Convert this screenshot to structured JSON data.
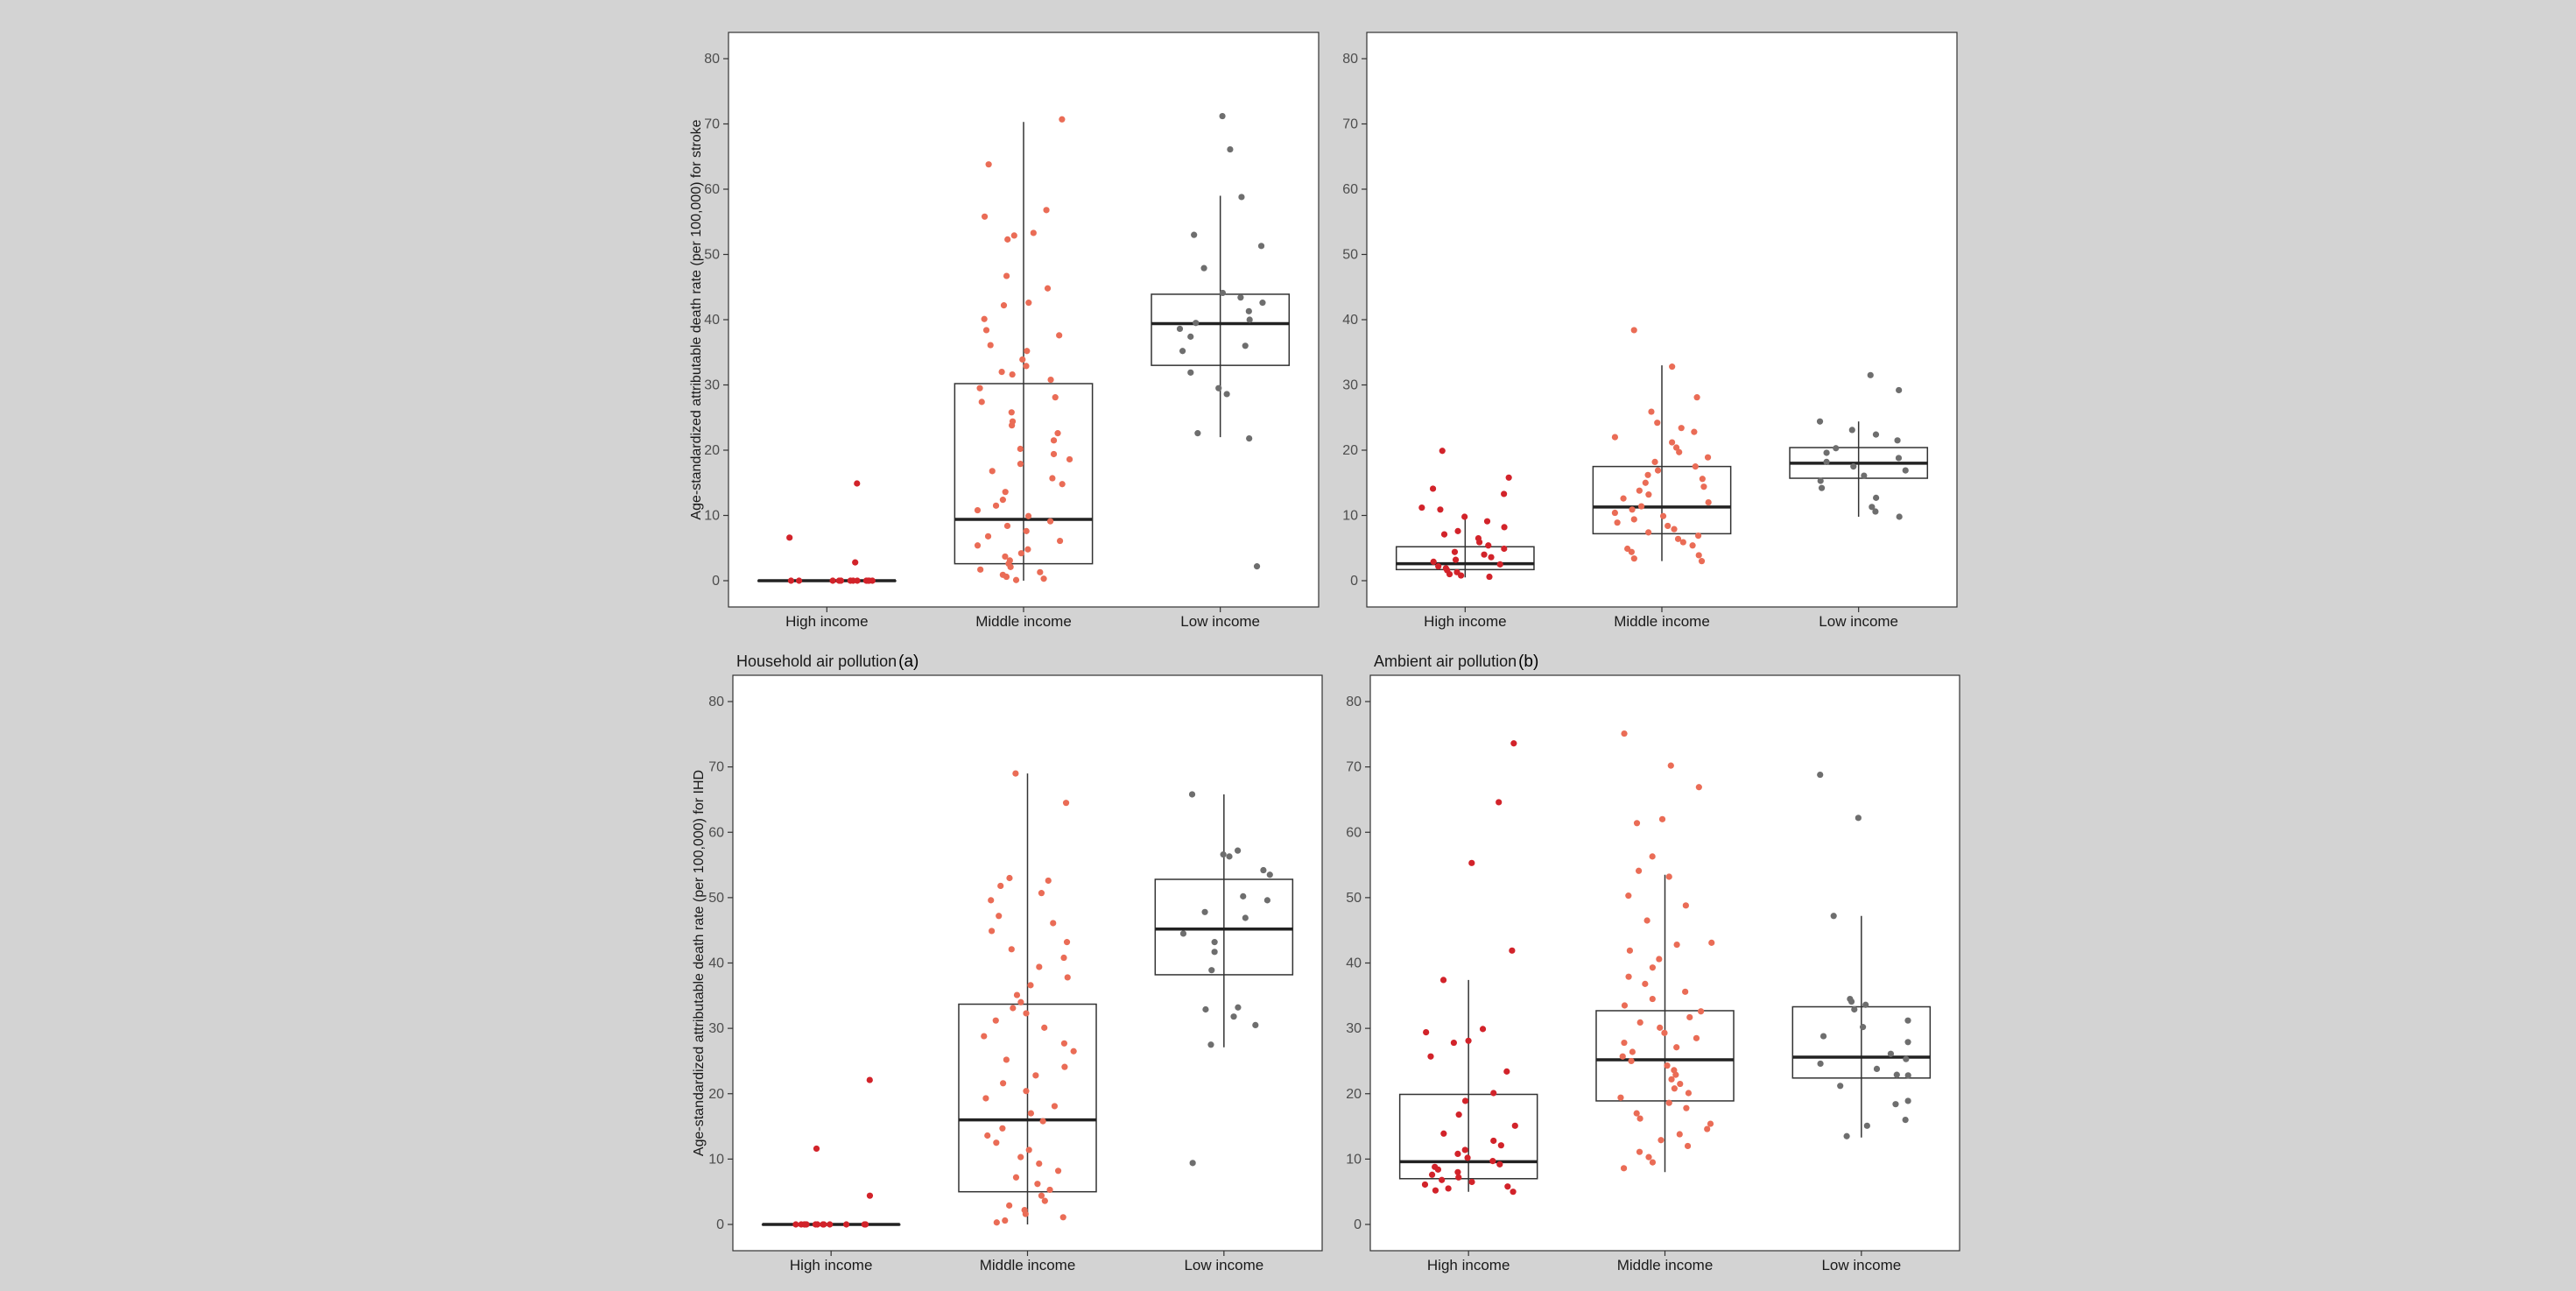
{
  "chart_data": [
    {
      "type": "box",
      "title": "",
      "tag": "",
      "ylabel": "Age-standardized attributable death rate (per 100,000) for stroke",
      "categories": [
        "High income",
        "Middle income",
        "Low income"
      ],
      "ylim": [
        0,
        80
      ],
      "yticks": [
        0,
        10,
        20,
        30,
        40,
        50,
        60,
        70,
        80
      ],
      "grid": false,
      "boxes": [
        {
          "q1": 0,
          "median": 0,
          "q3": 0,
          "whisker_low": 0,
          "whisker_high": 0
        },
        {
          "q1": 2.6,
          "median": 9.4,
          "q3": 30.2,
          "whisker_low": 0,
          "whisker_high": 70.3
        },
        {
          "q1": 33,
          "median": 39.4,
          "q3": 43.9,
          "whisker_low": 22,
          "whisker_high": 59
        }
      ],
      "points": [
        [
          14.9,
          6.6,
          2.8,
          0,
          0,
          0,
          0,
          0,
          0,
          0,
          0,
          0,
          0,
          0,
          0
        ],
        [
          70.7,
          63.8,
          56.8,
          55.8,
          53.3,
          52.9,
          52.3,
          46.7,
          44.8,
          42.6,
          42.2,
          40.1,
          38.4,
          37.6,
          36.1,
          35.2,
          33.9,
          32.9,
          32,
          31.6,
          30.8,
          29.5,
          28.1,
          27.4,
          25.8,
          24.4,
          23.8,
          22.6,
          21.5,
          20.2,
          19.4,
          18.6,
          17.9,
          16.8,
          15.7,
          14.8,
          13.6,
          12.4,
          11.5,
          10.8,
          9.9,
          9.1,
          8.4,
          7.6,
          6.8,
          6.1,
          5.4,
          4.8,
          4.2,
          3.7,
          3.1,
          2.6,
          2.1,
          1.7,
          1.3,
          0.9,
          0.6,
          0.3,
          0.1
        ],
        [
          71.2,
          66.1,
          58.8,
          53,
          51.3,
          47.9,
          44.1,
          43.4,
          42.6,
          41.3,
          40,
          39.5,
          38.6,
          37.4,
          36,
          35.2,
          31.9,
          29.5,
          28.6,
          22.6,
          21.8,
          2.2
        ]
      ]
    },
    {
      "type": "box",
      "title": "",
      "tag": "",
      "ylabel": "",
      "categories": [
        "High income",
        "Middle income",
        "Low income"
      ],
      "ylim": [
        0,
        80
      ],
      "yticks": [
        0,
        10,
        20,
        30,
        40,
        50,
        60,
        70,
        80
      ],
      "grid": false,
      "boxes": [
        {
          "q1": 1.7,
          "median": 2.6,
          "q3": 5.2,
          "whisker_low": 0.5,
          "whisker_high": 9.9
        },
        {
          "q1": 7.2,
          "median": 11.3,
          "q3": 17.5,
          "whisker_low": 3,
          "whisker_high": 33
        },
        {
          "q1": 15.7,
          "median": 18,
          "q3": 20.4,
          "whisker_low": 9.8,
          "whisker_high": 24.4
        }
      ],
      "points": [
        [
          19.9,
          15.8,
          14.1,
          13.3,
          11.2,
          10.9,
          9.8,
          9.1,
          8.2,
          7.6,
          7.1,
          6.5,
          5.9,
          5.4,
          4.9,
          4.4,
          4,
          3.6,
          3.2,
          2.9,
          2.5,
          2.2,
          1.9,
          1.6,
          1.3,
          1,
          0.8,
          0.6
        ],
        [
          38.4,
          32.8,
          28.1,
          25.9,
          24.2,
          23.4,
          22.8,
          22,
          21.2,
          20.4,
          19.7,
          18.9,
          18.2,
          17.5,
          16.9,
          16.2,
          15.6,
          15,
          14.4,
          13.8,
          13.2,
          12.6,
          12,
          11.4,
          10.9,
          10.4,
          9.9,
          9.4,
          8.9,
          8.4,
          7.9,
          7.4,
          6.9,
          6.4,
          5.9,
          5.4,
          4.9,
          4.4,
          3.9,
          3.4,
          3
        ],
        [
          31.5,
          29.2,
          24.4,
          23.1,
          22.4,
          21.5,
          20.3,
          19.6,
          18.8,
          18.2,
          17.5,
          16.9,
          16.1,
          15.3,
          14.2,
          12.7,
          11.3,
          10.6,
          9.8
        ]
      ]
    },
    {
      "type": "box",
      "title": "Household air pollution",
      "tag": "(a)",
      "ylabel": "Age-standardized attributable death rate (per 100,000) for IHD",
      "categories": [
        "High income",
        "Middle income",
        "Low income"
      ],
      "ylim": [
        0,
        80
      ],
      "yticks": [
        0,
        10,
        20,
        30,
        40,
        50,
        60,
        70,
        80
      ],
      "grid": false,
      "boxes": [
        {
          "q1": 0,
          "median": 0,
          "q3": 0,
          "whisker_low": 0,
          "whisker_high": 0
        },
        {
          "q1": 5,
          "median": 16,
          "q3": 33.7,
          "whisker_low": 0,
          "whisker_high": 69
        },
        {
          "q1": 38.2,
          "median": 45.2,
          "q3": 52.8,
          "whisker_low": 27.1,
          "whisker_high": 65.8
        }
      ],
      "points": [
        [
          22.1,
          11.6,
          4.4,
          0,
          0,
          0,
          0,
          0,
          0,
          0,
          0,
          0,
          0,
          0,
          0,
          0
        ],
        [
          69,
          64.5,
          53,
          52.6,
          51.8,
          50.7,
          49.6,
          47.2,
          46.1,
          44.9,
          43.2,
          42.1,
          40.8,
          39.4,
          37.8,
          36.6,
          35.1,
          34,
          33.1,
          32.3,
          31.2,
          30.1,
          28.8,
          27.7,
          26.5,
          25.2,
          24.1,
          22.8,
          21.6,
          20.4,
          19.3,
          18.1,
          17,
          15.8,
          14.7,
          13.6,
          12.5,
          11.4,
          10.3,
          9.3,
          8.2,
          7.2,
          6.2,
          5.3,
          4.4,
          3.6,
          2.9,
          2.2,
          1.6,
          1.1,
          0.6,
          0.3
        ],
        [
          65.8,
          57.2,
          56.6,
          56.3,
          54.2,
          53.5,
          50.2,
          49.6,
          47.8,
          46.9,
          44.5,
          43.2,
          41.7,
          38.9,
          33.2,
          32.9,
          31.8,
          30.5,
          27.5,
          9.4
        ]
      ]
    },
    {
      "type": "box",
      "title": "Ambient air pollution",
      "tag": "(b)",
      "ylabel": "",
      "categories": [
        "High income",
        "Middle income",
        "Low income"
      ],
      "ylim": [
        0,
        80
      ],
      "yticks": [
        0,
        10,
        20,
        30,
        40,
        50,
        60,
        70,
        80
      ],
      "grid": false,
      "boxes": [
        {
          "q1": 7,
          "median": 9.6,
          "q3": 19.9,
          "whisker_low": 5,
          "whisker_high": 37.4
        },
        {
          "q1": 18.9,
          "median": 25.2,
          "q3": 32.7,
          "whisker_low": 8,
          "whisker_high": 53.5
        },
        {
          "q1": 22.4,
          "median": 25.6,
          "q3": 33.3,
          "whisker_low": 13.3,
          "whisker_high": 47.2
        }
      ],
      "points": [
        [
          73.6,
          64.6,
          55.3,
          41.9,
          37.4,
          29.9,
          29.4,
          28.1,
          27.8,
          25.7,
          23.4,
          20.1,
          18.9,
          16.8,
          15.1,
          13.9,
          12.8,
          12.1,
          11.4,
          10.8,
          10.2,
          9.7,
          9.2,
          8.8,
          8.4,
          8,
          7.6,
          7.2,
          6.8,
          6.5,
          6.1,
          5.8,
          5.5,
          5.2,
          5
        ],
        [
          75.1,
          70.2,
          66.9,
          62,
          61.4,
          56.3,
          54.1,
          53.2,
          50.3,
          48.8,
          46.5,
          43.1,
          42.8,
          41.9,
          40.6,
          39.3,
          37.9,
          36.8,
          35.6,
          34.5,
          33.5,
          32.6,
          31.7,
          30.9,
          30.1,
          29.3,
          28.5,
          27.8,
          27.1,
          26.4,
          25.7,
          25,
          24.3,
          23.6,
          22.9,
          22.2,
          21.5,
          20.8,
          20.1,
          19.4,
          18.6,
          17.8,
          17,
          16.2,
          15.4,
          14.6,
          13.8,
          12.9,
          12,
          11.1,
          10.3,
          9.5,
          8.6
        ],
        [
          68.8,
          62.2,
          47.2,
          34.1,
          34.5,
          33.6,
          32.9,
          31.2,
          30.2,
          28.8,
          27.9,
          26.1,
          25.3,
          24.6,
          23.8,
          22.9,
          22.8,
          21.2,
          18.9,
          18.4,
          16,
          15.1,
          13.5
        ]
      ]
    }
  ]
}
